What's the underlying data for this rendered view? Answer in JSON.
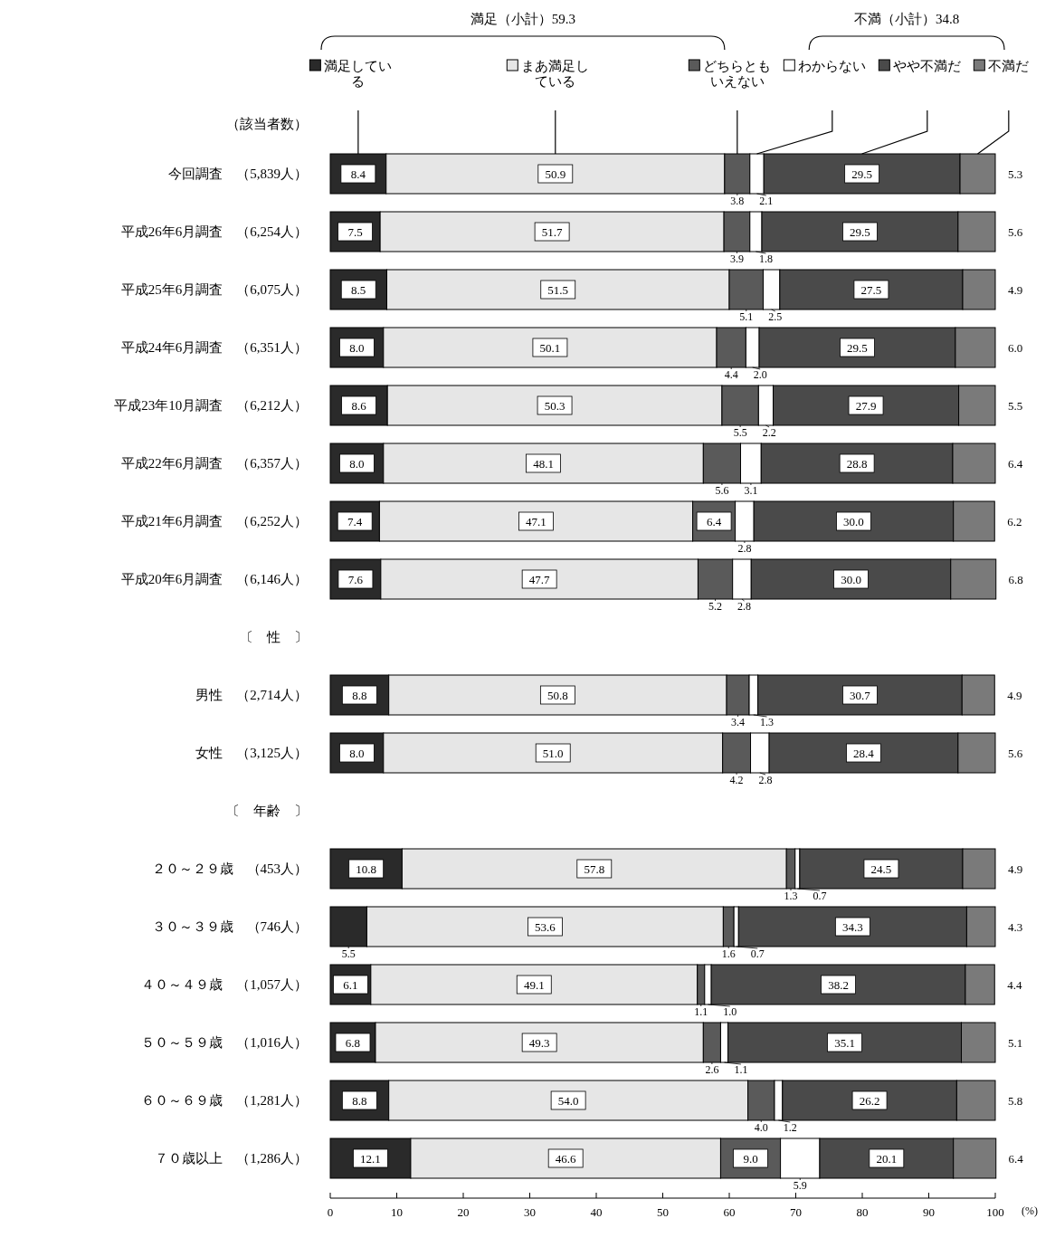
{
  "chart_data": {
    "type": "bar",
    "orientation": "horizontal",
    "stacked": true,
    "legend": "top",
    "xlabel": "(%)",
    "xlim": [
      0,
      100
    ],
    "xticks": [
      0,
      10,
      20,
      30,
      40,
      50,
      60,
      70,
      80,
      90,
      100
    ],
    "annotations": [
      "満足（小計）59.3",
      "不満（小計）34.8",
      "（該当者数）"
    ],
    "categories": [
      "今回調査　（5,839人）",
      "平成26年6月調査　（6,254人）",
      "平成25年6月調査　（6,075人）",
      "平成24年6月調査　（6,351人）",
      "平成23年10月調査　（6,212人）",
      "平成22年6月調査　（6,357人）",
      "平成21年6月調査　（6,252人）",
      "平成20年6月調査　（6,146人）",
      "〔　性　〕",
      "男性　（2,714人）",
      "女性　（3,125人）",
      "〔　年齢　〕",
      "２０～２９歳　（453人）",
      "３０～３９歳　（746人）",
      "４０～４９歳　（1,057人）",
      "５０～５９歳　（1,016人）",
      "６０～６９歳　（1,281人）",
      "７０歳以上　（1,286人）"
    ],
    "series": [
      {
        "name": "満足している",
        "color": "#2a2a2a",
        "values": [
          8.4,
          7.5,
          8.5,
          8.0,
          8.6,
          8.0,
          7.4,
          7.6,
          null,
          8.8,
          8.0,
          null,
          10.8,
          5.5,
          6.1,
          6.8,
          8.8,
          12.1
        ],
        "value_labels": [
          "8.4",
          "7.5",
          "8.5",
          "8.0",
          "8.6",
          "8.0",
          "7.4",
          "7.6",
          null,
          "8.8",
          "8.0",
          null,
          "10.8",
          "5.5",
          "6.1",
          "6.8",
          "8.8",
          "12.1"
        ]
      },
      {
        "name": "まあ満足している",
        "color": "#e6e6e6",
        "values": [
          50.9,
          51.7,
          51.5,
          50.1,
          50.3,
          48.1,
          47.1,
          47.7,
          null,
          50.8,
          51.0,
          null,
          57.8,
          53.6,
          49.1,
          49.3,
          54.0,
          46.6
        ],
        "value_labels": [
          "50.9",
          "51.7",
          "51.5",
          "50.1",
          "50.3",
          "48.1",
          "47.1",
          "47.7",
          null,
          "50.8",
          "51.0",
          null,
          "57.8",
          "53.6",
          "49.1",
          "49.3",
          "54.0",
          "46.6"
        ]
      },
      {
        "name": "どちらともいえない",
        "color": "#5a5a5a",
        "values": [
          3.8,
          3.9,
          5.1,
          4.4,
          5.5,
          5.6,
          6.4,
          5.2,
          null,
          3.4,
          4.2,
          null,
          1.3,
          1.6,
          1.1,
          2.6,
          4.0,
          9.0
        ],
        "value_labels": [
          "3.8",
          "3.9",
          "5.1",
          "4.4",
          "5.5",
          "5.6",
          "6.4",
          "5.2",
          null,
          "3.4",
          "4.2",
          null,
          "1.3",
          "1.6",
          "1.1",
          "2.6",
          "4.0",
          "9.0"
        ]
      },
      {
        "name": "わからない",
        "color": "#ffffff",
        "values": [
          2.1,
          1.8,
          2.5,
          2.0,
          2.2,
          3.1,
          2.8,
          2.8,
          null,
          1.3,
          2.8,
          null,
          0.7,
          0.7,
          1.0,
          1.1,
          1.2,
          5.9
        ],
        "value_labels": [
          "2.1",
          "1.8",
          "2.5",
          "2.0",
          "2.2",
          "3.1",
          "2.8",
          "2.8",
          null,
          "1.3",
          "2.8",
          null,
          "0.7",
          "0.7",
          "1.0",
          "1.1",
          "1.2",
          "5.9"
        ]
      },
      {
        "name": "やや不満だ",
        "color": "#4a4a4a",
        "values": [
          29.5,
          29.5,
          27.5,
          29.5,
          27.9,
          28.8,
          30.0,
          30.0,
          null,
          30.7,
          28.4,
          null,
          24.5,
          34.3,
          38.2,
          35.1,
          26.2,
          20.1
        ],
        "value_labels": [
          "29.5",
          "29.5",
          "27.5",
          "29.5",
          "27.9",
          "28.8",
          "30.0",
          "30.0",
          null,
          "30.7",
          "28.4",
          null,
          "24.5",
          "34.3",
          "38.2",
          "35.1",
          "26.2",
          "20.1"
        ]
      },
      {
        "name": "不満だ",
        "color": "#7a7a7a",
        "values": [
          5.3,
          5.6,
          4.9,
          6.0,
          5.5,
          6.4,
          6.2,
          6.8,
          null,
          4.9,
          5.6,
          null,
          4.9,
          4.3,
          4.4,
          5.1,
          5.8,
          6.4
        ],
        "value_labels": [
          "5.3",
          "5.6",
          "4.9",
          "6.0",
          "5.5",
          "6.4",
          "6.2",
          "6.8",
          null,
          "4.9",
          "5.6",
          null,
          "4.9",
          "4.3",
          "4.4",
          "5.1",
          "5.8",
          "6.4"
        ]
      }
    ]
  }
}
